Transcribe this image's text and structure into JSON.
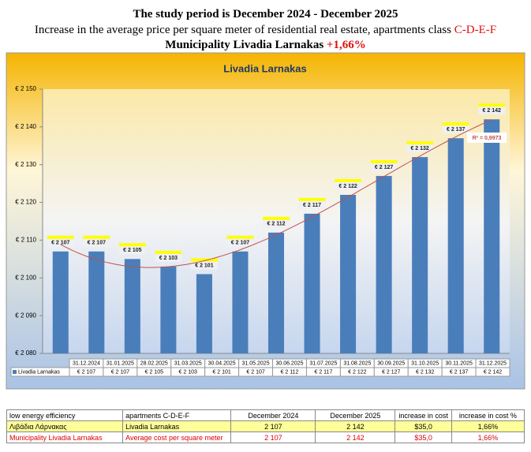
{
  "header": {
    "title": "The study period is December 2024 - December 2025",
    "subtitle": "Increase in the average price per square meter of residential real estate, apartments class",
    "subtitle_class": "C-D-E-F",
    "municipality": "Municipality  Livadia  Larnakas",
    "change": "+1,66%"
  },
  "chart_data": {
    "type": "bar",
    "title": "Livadia Larnakas",
    "categories": [
      "31.12.2024",
      "31.01.2025",
      "28.02.2025",
      "31.03.2025",
      "30.04.2025",
      "31.05.2025",
      "30.06.2025",
      "31.07.2025",
      "31.08.2025",
      "30.09.2025",
      "31.10.2025",
      "30.11.2025",
      "31.12.2025"
    ],
    "series": [
      {
        "name": "Livadia Larnakas",
        "color": "#4a7ebb",
        "values": [
          2107,
          2107,
          2105,
          2103,
          2101,
          2107,
          2112,
          2117,
          2122,
          2127,
          2132,
          2137,
          2142
        ],
        "value_labels": [
          "€ 2 107",
          "€ 2 107",
          "€ 2 105",
          "€ 2 103",
          "€ 2 101",
          "€ 2 107",
          "€ 2 112",
          "€ 2 117",
          "€ 2 122",
          "€ 2 127",
          "€ 2 132",
          "€ 2 137",
          "€ 2 142"
        ]
      }
    ],
    "ylim": [
      2080,
      2150
    ],
    "yticks": [
      {
        "value": 2080,
        "label": "€ 2 080"
      },
      {
        "value": 2090,
        "label": "€ 2 090"
      },
      {
        "value": 2100,
        "label": "€ 2 100"
      },
      {
        "value": 2110,
        "label": "€ 2 110"
      },
      {
        "value": 2120,
        "label": "€ 2 120"
      },
      {
        "value": 2130,
        "label": "€ 2 130"
      },
      {
        "value": 2140,
        "label": "€ 2 140"
      },
      {
        "value": 2150,
        "label": "€ 2 150"
      }
    ],
    "trendline_label": "R² = 0,9973",
    "trendline_color": "#c0504d",
    "grid": false
  },
  "summary_table": {
    "rows": [
      [
        "low energy efficiency",
        "apartments C-D-E-F",
        "December 2024",
        "December 2025",
        "increase in cost",
        "increase in cost %"
      ],
      [
        "Λιβάδια Λάρνακας",
        "Livadia Larnakas",
        "2 107",
        "2 142",
        "$35,0",
        "1,66%"
      ],
      [
        "Municipality Livadia Larnakas",
        "Average cost per square meter",
        "2 107",
        "2 142",
        "$35,0",
        "1,66%"
      ]
    ]
  }
}
